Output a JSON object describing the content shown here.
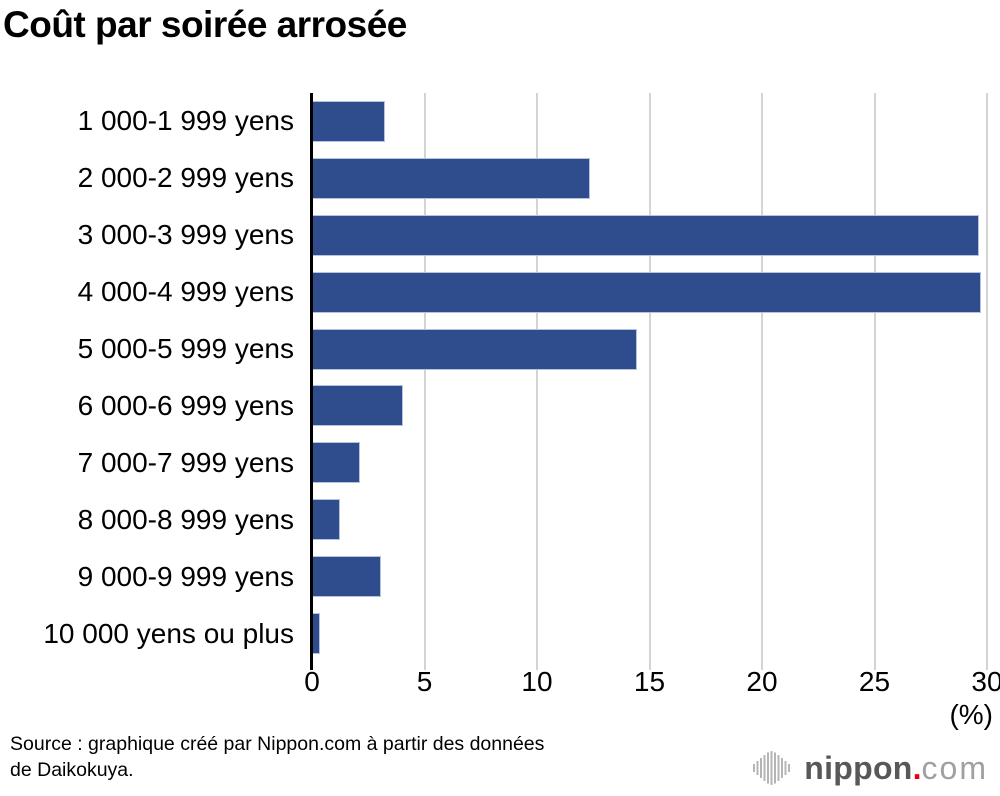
{
  "title": "Coût par soirée arrosée",
  "chart_data": {
    "type": "bar",
    "orientation": "horizontal",
    "title": "Coût par soirée arrosée",
    "categories": [
      "1 000-1 999 yens",
      "2 000-2 999 yens",
      "3 000-3 999 yens",
      "4 000-4 999 yens",
      "5 000-5 999 yens",
      "6 000-6 999 yens",
      "7 000-7 999 yens",
      "8 000-8 999 yens",
      "9 000-9 999 yens",
      "10 000 yens ou plus"
    ],
    "values": [
      3.2,
      12.3,
      29.6,
      29.7,
      14.4,
      4.0,
      2.1,
      1.2,
      3.0,
      0.3
    ],
    "xlabel": "(%)",
    "ylabel": "",
    "xlim": [
      0,
      30
    ],
    "xticks": [
      0,
      5,
      10,
      15,
      20,
      25,
      30
    ],
    "grid": true,
    "legend": false,
    "bar_color": "#2f4d8c"
  },
  "source": {
    "line1": "Source : graphique créé par Nippon.com à partir des données",
    "line2": "de Daikokuya."
  },
  "logo": {
    "icon": "soundwave-icon",
    "brand": "nippon",
    "dot": ".",
    "tld": "com"
  },
  "colors": {
    "bar": "#2f4d8c",
    "grid": "#d4d4d4",
    "axis": "#000000",
    "logo_dark": "#595757",
    "logo_light": "#9fa0a0",
    "logo_dot": "#e60012",
    "icon_gray": "#b5b5b6"
  }
}
